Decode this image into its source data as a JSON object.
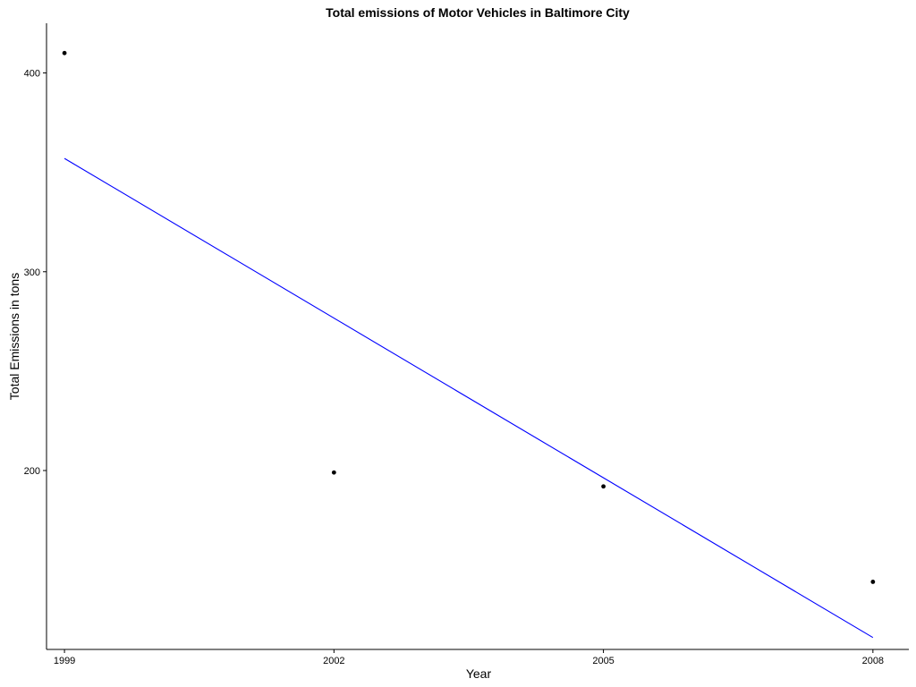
{
  "chart_data": {
    "type": "scatter",
    "title": "Total emissions of Motor Vehicles in Baltimore City",
    "xlabel": "Year",
    "ylabel": "Total Emissions in tons",
    "x": [
      1999,
      2002,
      2005,
      2008
    ],
    "y": [
      410,
      199,
      192,
      144
    ],
    "xticks": [
      1999,
      2002,
      2005,
      2008
    ],
    "yticks": [
      200,
      300,
      400
    ],
    "xlim": [
      1998.8,
      2008.4
    ],
    "ylim": [
      110,
      425
    ],
    "grid": false,
    "legend": "none",
    "trendline": {
      "type": "linear",
      "x": [
        1999,
        2008
      ],
      "y": [
        357,
        116
      ],
      "color": "#0000ff"
    },
    "point_color": "#000000"
  }
}
